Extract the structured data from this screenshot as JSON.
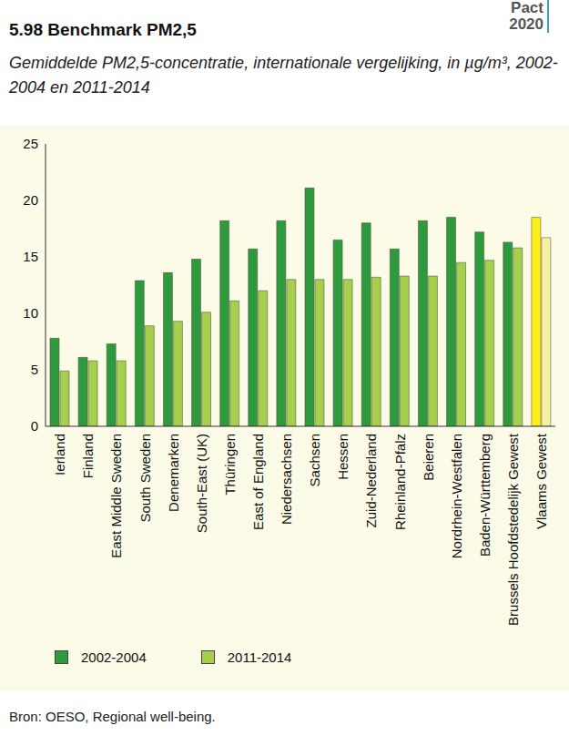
{
  "chart_data": {
    "type": "bar",
    "title": "5.98 Benchmark PM2,5",
    "subtitle": "Gemiddelde PM2,5-concentratie, internationale vergelijking, in µg/m³, 2002-2004 en 2011-2014",
    "logo": "Pact 2020",
    "source": "Bron: OESO, Regional well-being.",
    "categories": [
      "Ierland",
      "Finland",
      "East Middle Sweden",
      "South Sweden",
      "Denemarken",
      "South-East (UK)",
      "Thüringen",
      "East of England",
      "Niedersachsen",
      "Sachsen",
      "Hessen",
      "Zuid-Nederland",
      "Rheinland-Pfalz",
      "Beieren",
      "Nordrhein-Westfalen",
      "Baden-Württemberg",
      "Brussels Hoofdstedelijk Gewest",
      "Vlaams Gewest"
    ],
    "series": [
      {
        "name": "2002-2004",
        "color": "#2f9a3b",
        "colors": [
          "#2f9a3b",
          "#2f9a3b",
          "#2f9a3b",
          "#2f9a3b",
          "#2f9a3b",
          "#2f9a3b",
          "#2f9a3b",
          "#2f9a3b",
          "#2f9a3b",
          "#2f9a3b",
          "#2f9a3b",
          "#2f9a3b",
          "#2f9a3b",
          "#2f9a3b",
          "#2f9a3b",
          "#2f9a3b",
          "#2f9a3b",
          "#ffee1a"
        ],
        "values": [
          7.8,
          6.1,
          7.3,
          12.9,
          13.6,
          14.8,
          18.2,
          15.7,
          18.2,
          21.1,
          16.5,
          18.0,
          15.7,
          18.2,
          18.5,
          17.2,
          16.3,
          18.5
        ]
      },
      {
        "name": "2011-2014",
        "color": "#a5cf4c",
        "colors": [
          "#a5cf4c",
          "#a5cf4c",
          "#a5cf4c",
          "#a5cf4c",
          "#a5cf4c",
          "#a5cf4c",
          "#a5cf4c",
          "#a5cf4c",
          "#a5cf4c",
          "#a5cf4c",
          "#a5cf4c",
          "#a5cf4c",
          "#a5cf4c",
          "#a5cf4c",
          "#a5cf4c",
          "#a5cf4c",
          "#a5cf4c",
          "#f6f0a2"
        ],
        "values": [
          4.9,
          5.8,
          5.8,
          8.9,
          9.3,
          10.1,
          11.1,
          12.0,
          13.0,
          13.0,
          13.0,
          13.2,
          13.3,
          13.3,
          14.5,
          14.7,
          15.8,
          16.7
        ]
      }
    ],
    "ylim": [
      0,
      25
    ],
    "yticks": [
      0,
      5,
      10,
      15,
      20,
      25
    ],
    "grid": false,
    "legend": "bottom"
  }
}
